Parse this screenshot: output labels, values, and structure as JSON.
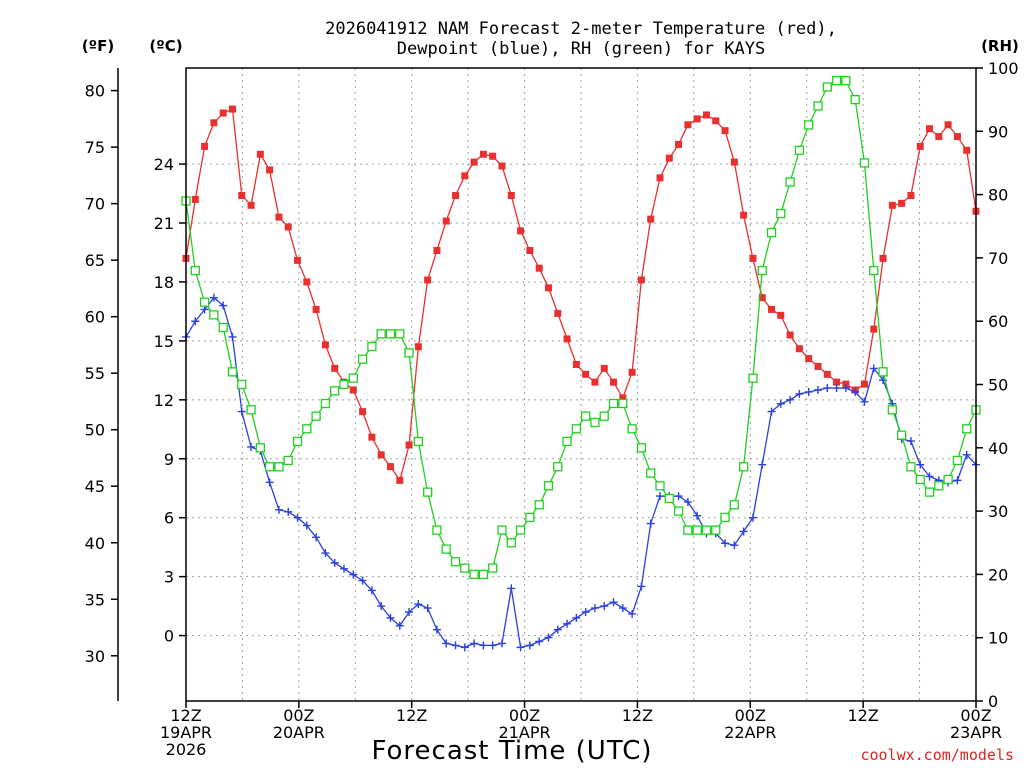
{
  "chart_data": {
    "type": "line",
    "title_line1": "2026041912 NAM Forecast 2-meter Temperature (red),",
    "title_line2": "Dewpoint (blue), RH (green) for KAYS",
    "xlabel": "Forecast Time (UTC)",
    "credit": "coolwx.com/models",
    "units": {
      "fahrenheit": "(ºF)",
      "celsius": "(ºC)",
      "rh": "(RH)"
    },
    "x_range_hours": [
      0,
      84
    ],
    "celsius_axis": {
      "range": [
        -3.33,
        28.89
      ],
      "ticks": [
        0,
        3,
        6,
        9,
        12,
        15,
        18,
        21,
        24
      ],
      "tick_labels": [
        "0",
        "3",
        "6",
        "9",
        "12",
        "15",
        "18",
        "21",
        "24"
      ]
    },
    "fahrenheit_axis": {
      "range": [
        26,
        82
      ],
      "ticks": [
        30,
        35,
        40,
        45,
        50,
        55,
        60,
        65,
        70,
        75,
        80
      ],
      "tick_labels": [
        "30",
        "35",
        "40",
        "45",
        "50",
        "55",
        "60",
        "65",
        "70",
        "75",
        "80"
      ]
    },
    "rh_axis": {
      "range": [
        0,
        100
      ],
      "ticks": [
        0,
        10,
        20,
        30,
        40,
        50,
        60,
        70,
        80,
        90,
        100
      ],
      "tick_labels": [
        "0",
        "10",
        "20",
        "30",
        "40",
        "50",
        "60",
        "70",
        "80",
        "90",
        "100"
      ]
    },
    "x_ticks": [
      {
        "hour": 0,
        "lines": [
          "12Z",
          "19APR",
          "2026"
        ]
      },
      {
        "hour": 12,
        "lines": [
          "00Z",
          "20APR"
        ]
      },
      {
        "hour": 24,
        "lines": [
          "12Z"
        ]
      },
      {
        "hour": 36,
        "lines": [
          "00Z",
          "21APR"
        ]
      },
      {
        "hour": 48,
        "lines": [
          "12Z"
        ]
      },
      {
        "hour": 60,
        "lines": [
          "00Z",
          "22APR"
        ]
      },
      {
        "hour": 72,
        "lines": [
          "12Z"
        ]
      },
      {
        "hour": 84,
        "lines": [
          "00Z",
          "23APR"
        ]
      }
    ],
    "series": [
      {
        "name": "Temperature",
        "color": "#e83030",
        "marker": "filled-square",
        "axis": "celsius",
        "values": [
          19.2,
          22.2,
          24.9,
          26.1,
          26.6,
          26.8,
          22.4,
          21.9,
          24.5,
          23.7,
          21.3,
          20.8,
          19.1,
          18.0,
          16.6,
          14.8,
          13.6,
          12.9,
          12.5,
          11.4,
          10.1,
          9.2,
          8.6,
          7.9,
          9.7,
          14.7,
          18.1,
          19.6,
          21.1,
          22.4,
          23.4,
          24.1,
          24.5,
          24.4,
          23.9,
          22.4,
          20.6,
          19.6,
          18.7,
          17.7,
          16.4,
          15.1,
          13.8,
          13.3,
          12.9,
          13.6,
          12.9,
          12.1,
          13.4,
          18.1,
          21.2,
          23.3,
          24.3,
          25.0,
          26.0,
          26.3,
          26.5,
          26.2,
          25.7,
          24.1,
          21.4,
          19.2,
          17.2,
          16.6,
          16.3,
          15.3,
          14.6,
          14.1,
          13.7,
          13.3,
          12.9,
          12.8,
          12.5,
          12.8,
          15.6,
          19.2,
          21.9,
          22.0,
          22.4,
          24.9,
          25.8,
          25.4,
          26.0,
          25.4,
          24.7,
          21.6
        ]
      },
      {
        "name": "Dewpoint",
        "color": "#2a40e0",
        "marker": "plus",
        "axis": "celsius",
        "values": [
          15.2,
          16.0,
          16.6,
          17.2,
          16.8,
          15.2,
          11.4,
          9.6,
          9.4,
          7.8,
          6.4,
          6.3,
          6.0,
          5.6,
          5.0,
          4.2,
          3.7,
          3.4,
          3.1,
          2.8,
          2.3,
          1.5,
          0.9,
          0.5,
          1.2,
          1.6,
          1.4,
          0.3,
          -0.4,
          -0.5,
          -0.6,
          -0.4,
          -0.5,
          -0.5,
          -0.4,
          2.4,
          -0.6,
          -0.5,
          -0.3,
          -0.1,
          0.3,
          0.6,
          0.9,
          1.2,
          1.4,
          1.5,
          1.7,
          1.4,
          1.1,
          2.5,
          5.7,
          7.1,
          7.1,
          7.1,
          6.8,
          6.1,
          5.2,
          5.2,
          4.7,
          4.6,
          5.3,
          6.0,
          8.7,
          11.4,
          11.8,
          12.0,
          12.3,
          12.4,
          12.5,
          12.6,
          12.6,
          12.6,
          12.4,
          11.9,
          13.6,
          13.0,
          11.8,
          10.0,
          9.9,
          8.7,
          8.1,
          7.9,
          7.8,
          7.9,
          9.2,
          8.7
        ]
      },
      {
        "name": "RH",
        "color": "#20d020",
        "marker": "open-square",
        "axis": "rh",
        "values": [
          79,
          68,
          63,
          61,
          59,
          52,
          50,
          46,
          40,
          37,
          37,
          38,
          41,
          43,
          45,
          47,
          49,
          50,
          51,
          54,
          56,
          58,
          58,
          58,
          55,
          41,
          33,
          27,
          24,
          22,
          21,
          20,
          20,
          21,
          27,
          25,
          27,
          29,
          31,
          34,
          37,
          41,
          43,
          45,
          44,
          45,
          47,
          47,
          43,
          40,
          36,
          34,
          32,
          30,
          27,
          27,
          27,
          27,
          29,
          31,
          37,
          51,
          68,
          74,
          77,
          82,
          87,
          91,
          94,
          97,
          98,
          98,
          95,
          85,
          68,
          52,
          46,
          42,
          37,
          35,
          33,
          34,
          35,
          38,
          43,
          46
        ]
      }
    ]
  }
}
